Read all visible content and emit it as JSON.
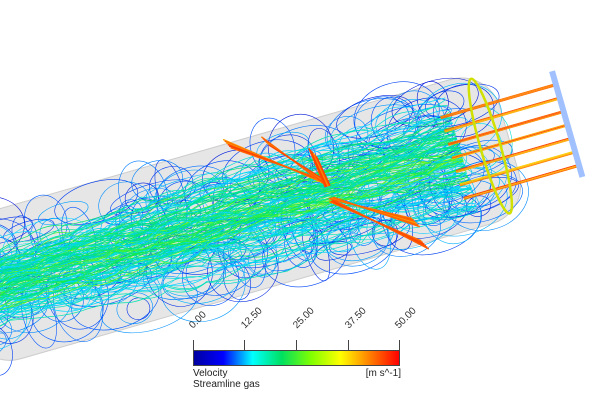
{
  "legend": {
    "variable": "Velocity",
    "object": "Streamline gas",
    "unit": "[m s^-1]",
    "ticks": [
      "0.00",
      "12.50",
      "25.00",
      "37.50",
      "50.00"
    ],
    "range": [
      0,
      50
    ],
    "colormap": [
      "#0000ff",
      "#00ffff",
      "#00ff00",
      "#ffff00",
      "#ff0000"
    ]
  }
}
